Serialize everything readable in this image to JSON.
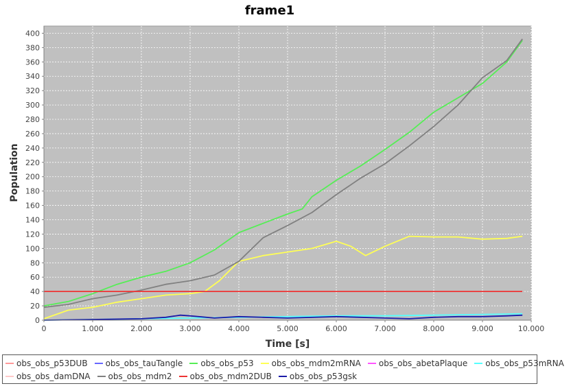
{
  "window": {
    "title": "frame1"
  },
  "chart_data": {
    "type": "line",
    "title": "frame1",
    "xlabel": "Time [s]",
    "ylabel": "Population",
    "xlim": [
      0,
      10000
    ],
    "ylim": [
      0,
      410
    ],
    "x_ticks": [
      0,
      1000,
      2000,
      3000,
      4000,
      5000,
      6000,
      7000,
      8000,
      9000,
      10000
    ],
    "x_tick_labels": [
      "0",
      "1.000",
      "2.000",
      "3.000",
      "4.000",
      "5.000",
      "6.000",
      "7.000",
      "8.000",
      "9.000",
      "10.000"
    ],
    "y_ticks": [
      0,
      20,
      40,
      60,
      80,
      100,
      120,
      140,
      160,
      180,
      200,
      220,
      240,
      260,
      280,
      300,
      320,
      340,
      360,
      380,
      400
    ],
    "y_tick_labels": [
      "0",
      "20",
      "40",
      "60",
      "80",
      "100",
      "120",
      "140",
      "160",
      "180",
      "200",
      "220",
      "240",
      "260",
      "280",
      "300",
      "320",
      "340",
      "360",
      "380",
      "400"
    ],
    "grid": true,
    "background": "#c0c0c0",
    "legend_position": "bottom",
    "series": [
      {
        "name": "obs_obs_p53DUB",
        "color": "#ff9999",
        "x": [],
        "y": []
      },
      {
        "name": "obs_obs_tauTangle",
        "color": "#6666ff",
        "x": [],
        "y": []
      },
      {
        "name": "obs_obs_p53",
        "color": "#55ee55",
        "x": [
          0,
          500,
          1000,
          1500,
          2000,
          2500,
          3000,
          3500,
          4000,
          4500,
          5000,
          5300,
          5500,
          6000,
          6500,
          7000,
          7500,
          8000,
          8500,
          9000,
          9500,
          9820
        ],
        "y": [
          20,
          26,
          37,
          50,
          60,
          68,
          80,
          98,
          122,
          135,
          148,
          155,
          172,
          195,
          215,
          238,
          262,
          290,
          310,
          330,
          360,
          390
        ]
      },
      {
        "name": "obs_obs_mdm2mRNA",
        "color": "#ffff55",
        "x": [
          0,
          500,
          1000,
          1500,
          2000,
          2500,
          3000,
          3300,
          3600,
          4000,
          4500,
          5000,
          5500,
          6000,
          6300,
          6600,
          7000,
          7500,
          8000,
          8500,
          9000,
          9500,
          9820
        ],
        "y": [
          2,
          14,
          18,
          25,
          30,
          35,
          37,
          40,
          55,
          82,
          90,
          95,
          100,
          110,
          103,
          90,
          103,
          117,
          116,
          116,
          113,
          114,
          117
        ]
      },
      {
        "name": "obs_obs_abetaPlaque",
        "color": "#ff55ff",
        "x": [],
        "y": []
      },
      {
        "name": "obs_obs_p53mRNA",
        "color": "#55ffff",
        "x": [
          0,
          1000,
          2000,
          3000,
          4000,
          5000,
          6000,
          7000,
          8000,
          9000,
          9820
        ],
        "y": [
          0,
          1,
          2,
          3,
          4,
          5,
          6,
          6,
          7,
          8,
          9
        ]
      },
      {
        "name": "obs_obs_damDNA",
        "color": "#ffc8c8",
        "x": [],
        "y": []
      },
      {
        "name": "obs_obs_mdm2",
        "color": "#808080",
        "x": [
          0,
          500,
          1000,
          1500,
          2000,
          2500,
          3000,
          3500,
          4000,
          4500,
          5000,
          5500,
          6000,
          6500,
          7000,
          7500,
          8000,
          8500,
          9000,
          9500,
          9820
        ],
        "y": [
          18,
          22,
          30,
          35,
          42,
          50,
          55,
          63,
          82,
          115,
          132,
          150,
          175,
          198,
          218,
          243,
          270,
          300,
          338,
          362,
          392
        ]
      },
      {
        "name": "obs_obs_mdm2DUB",
        "color": "#ee3333",
        "x": [
          0,
          9820
        ],
        "y": [
          40,
          40
        ]
      },
      {
        "name": "obs_obs_p53gsk",
        "color": "#1a1aa8",
        "x": [
          0,
          1000,
          2000,
          2500,
          2800,
          3000,
          3500,
          4000,
          4500,
          5000,
          6000,
          6500,
          7000,
          7500,
          8000,
          8500,
          9000,
          9500,
          9820
        ],
        "y": [
          0,
          1,
          2,
          4,
          7,
          6,
          3,
          5,
          4,
          3,
          5,
          4,
          3,
          2,
          4,
          5,
          5,
          6,
          7
        ]
      }
    ]
  }
}
